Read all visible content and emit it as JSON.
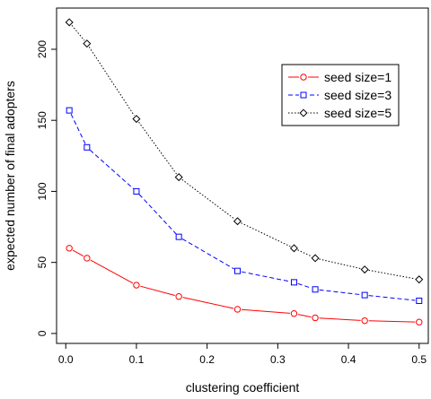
{
  "chart_data": {
    "type": "line",
    "title": "",
    "xlabel": "clustering coefficient",
    "ylabel": "expected number of final adopters",
    "xlim": [
      -0.013,
      0.513
    ],
    "ylim": [
      -7,
      229
    ],
    "x_ticks": [
      0.0,
      0.1,
      0.2,
      0.3,
      0.4,
      0.5
    ],
    "x_tick_labels": [
      "0.0",
      "0.1",
      "0.2",
      "0.3",
      "0.4",
      "0.5"
    ],
    "y_ticks": [
      0,
      50,
      100,
      150,
      200
    ],
    "y_tick_labels": [
      "0",
      "50",
      "100",
      "150",
      "200"
    ],
    "grid": false,
    "legend_position": "top-right",
    "x": [
      0.005,
      0.03,
      0.1,
      0.16,
      0.243,
      0.323,
      0.353,
      0.423,
      0.5
    ],
    "series": [
      {
        "name": "seed size=1",
        "color": "#ff0000",
        "marker": "circle",
        "dash": "solid",
        "values": [
          60,
          53,
          34,
          26,
          17,
          14,
          11,
          9,
          8
        ]
      },
      {
        "name": "seed size=3",
        "color": "#0000ff",
        "marker": "square",
        "dash": "dashed",
        "values": [
          157,
          131,
          100,
          68,
          44,
          36,
          31,
          27,
          23
        ]
      },
      {
        "name": "seed size=5",
        "color": "#000000",
        "marker": "diamond",
        "dash": "dotted",
        "values": [
          219,
          204,
          151,
          110,
          79,
          60,
          53,
          45,
          38
        ]
      }
    ]
  }
}
